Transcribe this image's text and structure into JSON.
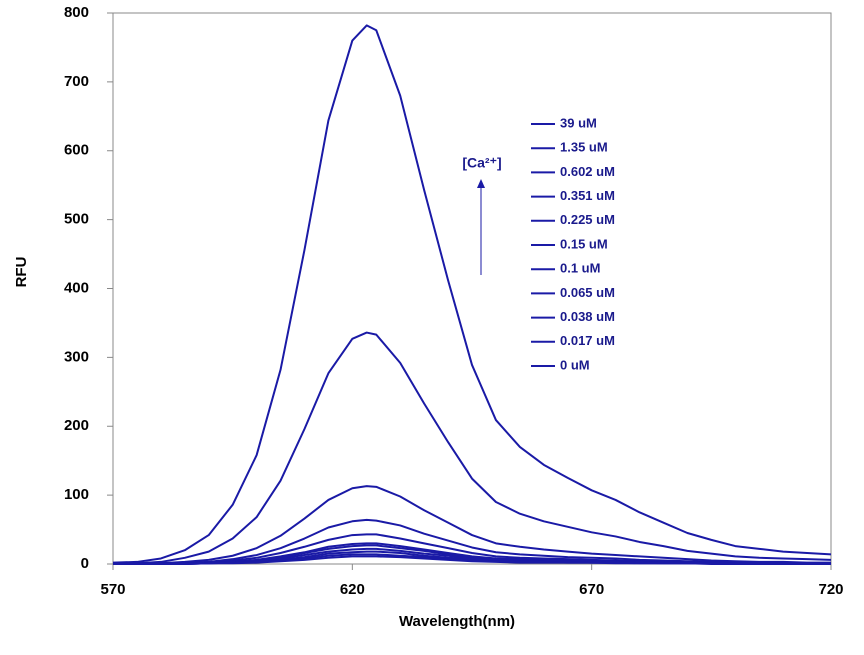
{
  "chart_data": {
    "type": "line",
    "x_label": "Wavelength(nm)",
    "y_label": "RFU",
    "annotation": "[Ca²⁺]",
    "xlim": [
      570,
      720
    ],
    "xticks": [
      570,
      620,
      670,
      720
    ],
    "ylim": [
      0,
      800
    ],
    "yticks": [
      0,
      100,
      200,
      300,
      400,
      500,
      600,
      700,
      800
    ],
    "grid": false,
    "legend": "upper right",
    "x": [
      570,
      575,
      580,
      585,
      590,
      595,
      600,
      605,
      610,
      615,
      620,
      623,
      625,
      630,
      635,
      640,
      645,
      650,
      655,
      660,
      665,
      670,
      675,
      680,
      685,
      690,
      695,
      700,
      705,
      710,
      715,
      720
    ],
    "series": [
      {
        "name": "39 uM",
        "color": "#1a1aa6",
        "values": [
          2,
          3,
          8,
          20,
          42,
          86,
          158,
          282,
          456,
          644,
          760,
          782,
          775,
          680,
          543,
          412,
          289,
          209,
          170,
          144,
          125,
          107,
          93,
          75,
          60,
          45,
          35,
          26,
          22,
          18,
          16,
          14
        ]
      },
      {
        "name": "1.35 uM",
        "color": "#1a1aa6",
        "values": [
          1,
          1,
          3,
          9,
          18,
          37,
          68,
          121,
          196,
          277,
          327,
          336,
          333,
          292,
          233,
          177,
          124,
          90,
          73,
          62,
          54,
          46,
          40,
          32,
          26,
          19,
          15,
          11,
          9,
          8,
          7,
          6
        ]
      },
      {
        "name": "0.602 uM",
        "color": "#1a1aa6",
        "values": [
          0,
          0,
          1,
          3,
          6,
          12,
          23,
          41,
          66,
          93,
          110,
          113,
          112,
          98,
          78,
          60,
          42,
          30,
          25,
          21,
          18,
          15,
          13,
          11,
          9,
          7,
          5,
          4,
          3,
          3,
          2,
          2
        ]
      },
      {
        "name": "0.351 uM",
        "color": "#1a1aa6",
        "values": [
          0,
          0,
          1,
          2,
          3,
          7,
          13,
          23,
          37,
          53,
          62,
          64,
          63,
          56,
          44,
          34,
          24,
          17,
          14,
          12,
          10,
          9,
          8,
          6,
          5,
          4,
          3,
          2,
          2,
          1,
          1,
          1
        ]
      },
      {
        "name": "0.225 uM",
        "color": "#1a1aa6",
        "values": [
          0,
          0,
          0,
          1,
          2,
          5,
          9,
          16,
          25,
          35,
          42,
          43,
          43,
          37,
          30,
          23,
          16,
          11,
          9,
          8,
          7,
          6,
          5,
          4,
          3,
          2,
          2,
          1,
          1,
          1,
          1,
          1
        ]
      },
      {
        "name": "0.15 uM",
        "color": "#1a1aa6",
        "values": [
          0,
          0,
          0,
          1,
          2,
          3,
          6,
          11,
          17,
          25,
          29,
          30,
          30,
          26,
          21,
          16,
          11,
          8,
          7,
          6,
          5,
          4,
          4,
          3,
          2,
          2,
          1,
          1,
          1,
          1,
          1,
          1
        ]
      },
      {
        "name": "0.1 uM",
        "color": "#1a1aa6",
        "values": [
          0,
          0,
          0,
          1,
          1,
          3,
          5,
          10,
          16,
          22,
          26,
          27,
          27,
          23,
          19,
          14,
          10,
          7,
          6,
          5,
          4,
          4,
          3,
          3,
          2,
          2,
          1,
          1,
          1,
          1,
          1,
          0
        ]
      },
      {
        "name": "0.065 uM",
        "color": "#1a1aa6",
        "values": [
          0,
          0,
          0,
          1,
          1,
          2,
          4,
          8,
          13,
          18,
          21,
          22,
          22,
          19,
          15,
          12,
          8,
          6,
          5,
          4,
          4,
          3,
          3,
          2,
          2,
          1,
          1,
          1,
          1,
          1,
          0,
          0
        ]
      },
      {
        "name": "0.038 uM",
        "color": "#1a1aa6",
        "values": [
          0,
          0,
          0,
          0,
          1,
          2,
          4,
          6,
          10,
          15,
          17,
          18,
          18,
          16,
          12,
          9,
          7,
          5,
          4,
          3,
          3,
          2,
          2,
          2,
          1,
          1,
          1,
          1,
          1,
          0,
          0,
          0
        ]
      },
      {
        "name": "0.017 uM",
        "color": "#1a1aa6",
        "values": [
          0,
          0,
          0,
          0,
          1,
          2,
          3,
          5,
          8,
          12,
          14,
          14,
          14,
          12,
          10,
          7,
          5,
          4,
          3,
          3,
          2,
          2,
          2,
          1,
          1,
          1,
          1,
          0,
          0,
          0,
          0,
          0
        ]
      },
      {
        "name": "0 uM",
        "color": "#1a1aa6",
        "values": [
          0,
          0,
          0,
          0,
          1,
          1,
          2,
          4,
          6,
          9,
          11,
          11,
          11,
          10,
          8,
          6,
          4,
          3,
          2,
          2,
          2,
          2,
          1,
          1,
          1,
          1,
          0,
          0,
          0,
          0,
          0,
          0
        ]
      }
    ]
  }
}
